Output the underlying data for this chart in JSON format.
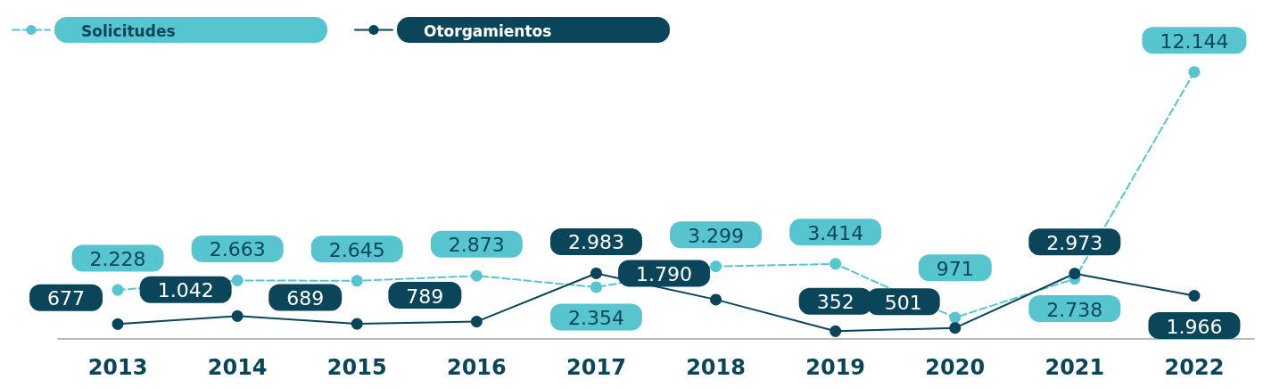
{
  "chart_data": {
    "type": "line",
    "categories": [
      "2013",
      "2014",
      "2015",
      "2016",
      "2017",
      "2018",
      "2019",
      "2020",
      "2021",
      "2022"
    ],
    "series": [
      {
        "name": "Solicitudes",
        "color": "#56c5d0",
        "line_style": "dashed",
        "values": [
          2228,
          2663,
          2645,
          2873,
          2354,
          3299,
          3414,
          971,
          2738,
          12144
        ],
        "value_labels": [
          "2.228",
          "2.663",
          "2.645",
          "2.873",
          "2.354",
          "3.299",
          "3.414",
          "971",
          "2.738",
          "12.144"
        ]
      },
      {
        "name": "Otorgamientos",
        "color": "#0b4559",
        "line_style": "solid",
        "values": [
          677,
          1042,
          689,
          789,
          2983,
          1790,
          352,
          501,
          2973,
          1966
        ],
        "value_labels": [
          "677",
          "1.042",
          "689",
          "789",
          "2.983",
          "1.790",
          "352",
          "501",
          "2.973",
          "1.966"
        ]
      }
    ],
    "marker": "circle",
    "grid": false,
    "legend": "top left"
  }
}
